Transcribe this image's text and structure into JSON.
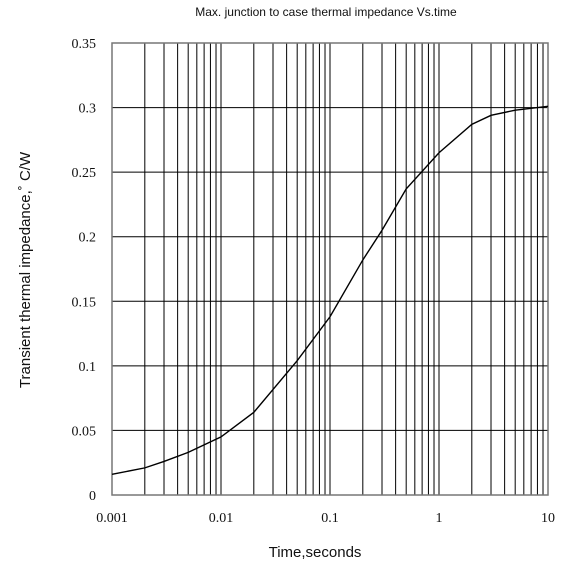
{
  "chart_data": {
    "type": "line",
    "title": "Max. junction to case thermal impedance Vs.time",
    "xlabel": "Time,seconds",
    "ylabel": "Transient thermal impedance,˚ C/W",
    "x_scale": "log",
    "xlim": [
      0.001,
      10
    ],
    "ylim": [
      0,
      0.35
    ],
    "grid": true,
    "x_ticks": [
      0.001,
      0.01,
      0.1,
      1,
      10
    ],
    "x_tick_labels": [
      "0.001",
      "0.01",
      "0.1",
      "1",
      "10"
    ],
    "y_ticks": [
      0,
      0.05,
      0.1,
      0.15,
      0.2,
      0.25,
      0.3,
      0.35
    ],
    "y_tick_labels": [
      "0",
      "0.05",
      "0.1",
      "0.15",
      "0.2",
      "0.25",
      "0.3",
      "0.35"
    ],
    "series": [
      {
        "x": [
          0.001,
          0.002,
          0.003,
          0.005,
          0.01,
          0.02,
          0.05,
          0.1,
          0.2,
          0.3,
          0.5,
          1,
          2,
          3,
          5,
          10
        ],
        "y": [
          0.016,
          0.021,
          0.026,
          0.033,
          0.045,
          0.064,
          0.104,
          0.138,
          0.182,
          0.205,
          0.237,
          0.265,
          0.287,
          0.294,
          0.298,
          0.301
        ]
      }
    ]
  }
}
